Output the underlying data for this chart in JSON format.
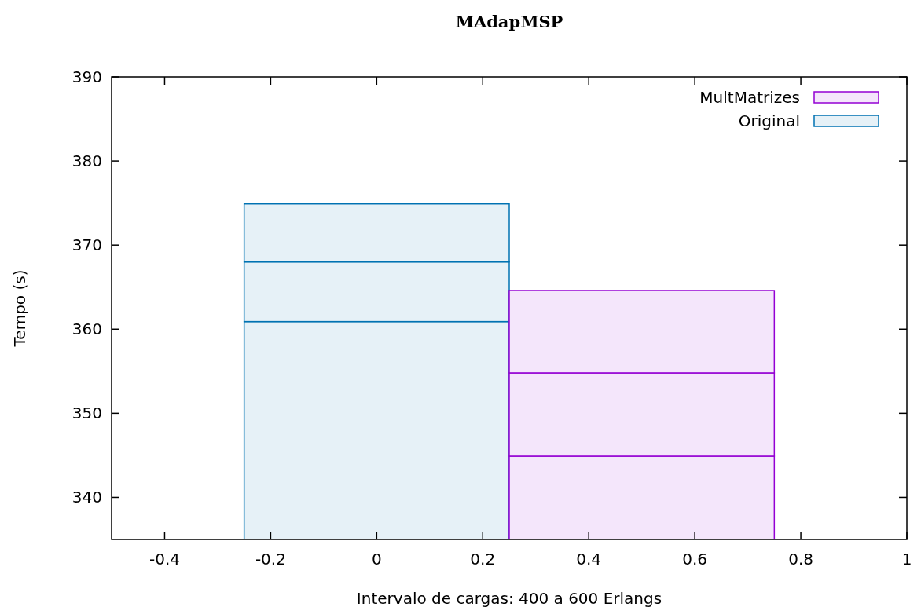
{
  "chart_data": {
    "type": "bar",
    "title": "MAdapMSP",
    "xlabel": "Intervalo de cargas: 400 a 600 Erlangs",
    "ylabel": "Tempo (s)",
    "xlim": [
      -0.5,
      1
    ],
    "xticks": [
      -0.4,
      -0.2,
      0,
      0.2,
      0.4,
      0.6,
      0.8,
      1
    ],
    "ylim": [
      335,
      390
    ],
    "yticks": [
      340,
      350,
      360,
      370,
      380,
      390
    ],
    "series": [
      {
        "colors": [
          "#0072b2",
          "#9400d3"
        ],
        "base": [
          0,
          0
        ],
        "values": [
          360.9,
          344.9
        ]
      },
      {
        "colors": [
          "#0072b2",
          "#9400d3"
        ],
        "base": [
          360.9,
          344.9
        ],
        "values": [
          7.1,
          9.9
        ]
      },
      {
        "name": "MultMatrizes",
        "color": "#9400d3",
        "base": [
          null,
          354.8
        ],
        "values": [
          null,
          9.8
        ]
      },
      {
        "name": "Original",
        "color": "#0072b2",
        "base": [
          368.0,
          null
        ],
        "values": [
          6.9,
          null
        ]
      }
    ],
    "x": [
      0,
      0.5
    ],
    "grid": false,
    "legend": "top right"
  }
}
